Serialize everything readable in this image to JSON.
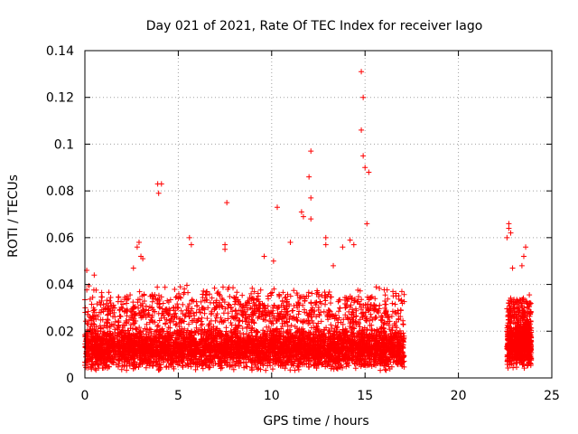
{
  "chart_data": {
    "type": "scatter",
    "title": "Day 021 of 2021, Rate Of TEC Index for receiver Iago",
    "xlabel": "GPS time / hours",
    "ylabel": "ROTI / TECUs",
    "xlim": [
      0,
      25
    ],
    "ylim": [
      0,
      0.14
    ],
    "x_ticks": [
      "0",
      "5",
      "10",
      "15",
      "20",
      "25"
    ],
    "y_ticks": [
      "0",
      "0.02",
      "0.04",
      "0.06",
      "0.08",
      "0.1",
      "0.12",
      "0.14"
    ],
    "grid": true,
    "marker": "plus",
    "color": "#ff0000",
    "outliers": [
      {
        "x": 14.8,
        "y": 0.131
      },
      {
        "x": 14.9,
        "y": 0.12
      },
      {
        "x": 14.8,
        "y": 0.106
      },
      {
        "x": 12.1,
        "y": 0.097
      },
      {
        "x": 14.9,
        "y": 0.095
      },
      {
        "x": 15.0,
        "y": 0.09
      },
      {
        "x": 15.2,
        "y": 0.088
      },
      {
        "x": 12.0,
        "y": 0.086
      },
      {
        "x": 3.9,
        "y": 0.083
      },
      {
        "x": 4.1,
        "y": 0.083
      },
      {
        "x": 3.95,
        "y": 0.079
      },
      {
        "x": 12.1,
        "y": 0.077
      },
      {
        "x": 7.6,
        "y": 0.075
      },
      {
        "x": 10.3,
        "y": 0.073
      },
      {
        "x": 11.6,
        "y": 0.071
      },
      {
        "x": 11.7,
        "y": 0.069
      },
      {
        "x": 12.1,
        "y": 0.068
      },
      {
        "x": 15.1,
        "y": 0.066
      },
      {
        "x": 22.7,
        "y": 0.066
      },
      {
        "x": 22.7,
        "y": 0.064
      },
      {
        "x": 22.8,
        "y": 0.062
      },
      {
        "x": 5.6,
        "y": 0.06
      },
      {
        "x": 12.9,
        "y": 0.06
      },
      {
        "x": 22.6,
        "y": 0.06
      },
      {
        "x": 2.9,
        "y": 0.058
      },
      {
        "x": 11.0,
        "y": 0.058
      },
      {
        "x": 5.7,
        "y": 0.057
      },
      {
        "x": 7.5,
        "y": 0.057
      },
      {
        "x": 12.9,
        "y": 0.057
      },
      {
        "x": 2.8,
        "y": 0.056
      },
      {
        "x": 23.6,
        "y": 0.056
      },
      {
        "x": 7.5,
        "y": 0.055
      },
      {
        "x": 3.0,
        "y": 0.052
      },
      {
        "x": 3.1,
        "y": 0.051
      },
      {
        "x": 9.6,
        "y": 0.052
      },
      {
        "x": 10.1,
        "y": 0.05
      },
      {
        "x": 2.6,
        "y": 0.047
      },
      {
        "x": 0.1,
        "y": 0.046
      },
      {
        "x": 0.5,
        "y": 0.044
      },
      {
        "x": 23.4,
        "y": 0.048
      },
      {
        "x": 22.9,
        "y": 0.047
      },
      {
        "x": 23.5,
        "y": 0.052
      },
      {
        "x": 13.3,
        "y": 0.048
      },
      {
        "x": 14.2,
        "y": 0.059
      },
      {
        "x": 14.4,
        "y": 0.057
      },
      {
        "x": 13.8,
        "y": 0.056
      }
    ],
    "background_bands": [
      {
        "x_start": 0.0,
        "x_end": 17.1,
        "y_min": 0.003,
        "y_max": 0.022,
        "points": 4200
      },
      {
        "x_start": 0.0,
        "x_end": 17.1,
        "y_min": 0.015,
        "y_max": 0.04,
        "points": 1100
      },
      {
        "x_start": 22.6,
        "x_end": 23.9,
        "y_min": 0.004,
        "y_max": 0.025,
        "points": 700
      },
      {
        "x_start": 22.6,
        "x_end": 23.9,
        "y_min": 0.02,
        "y_max": 0.036,
        "points": 160
      }
    ]
  }
}
